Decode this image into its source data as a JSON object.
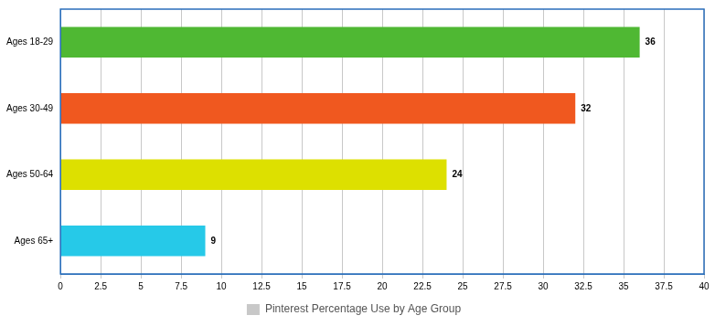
{
  "chart_data": {
    "type": "bar",
    "orientation": "horizontal",
    "categories": [
      "Ages 18-29",
      "Ages 30-49",
      "Ages 50-64",
      "Ages 65+"
    ],
    "series": [
      {
        "name": "Pinterest Percentage Use by Age Group",
        "values": [
          36,
          32,
          24,
          9
        ],
        "colors": [
          "#4fb833",
          "#f0581f",
          "#dde000",
          "#26c9e8"
        ]
      }
    ],
    "xlim": [
      0,
      40
    ],
    "xticks": [
      0,
      2.5,
      5,
      7.5,
      10,
      12.5,
      15,
      17.5,
      20,
      22.5,
      25,
      27.5,
      30,
      32.5,
      35,
      37.5,
      40
    ],
    "grid": true,
    "data_labels": true,
    "legend": "bottom"
  }
}
